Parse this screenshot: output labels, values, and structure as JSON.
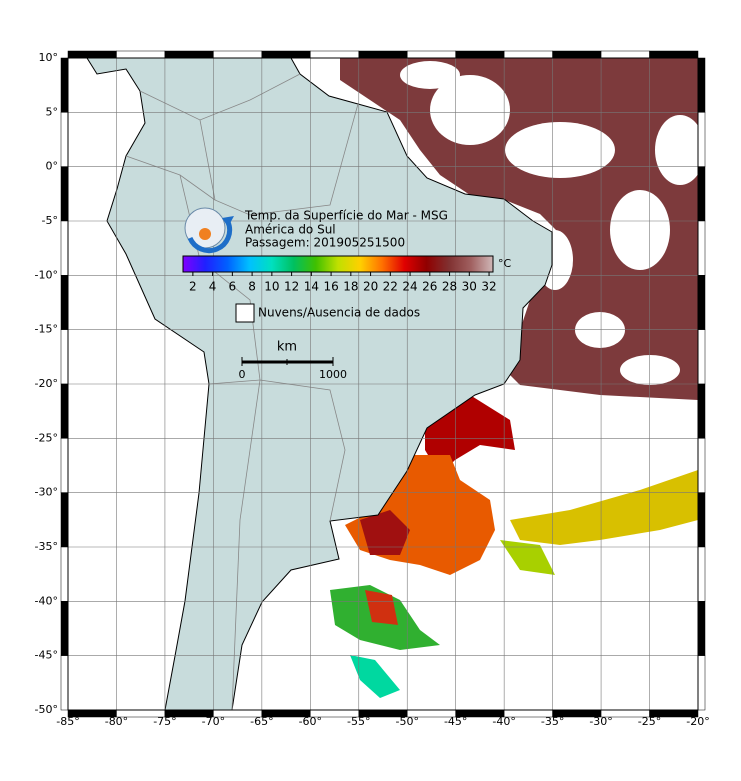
{
  "map": {
    "title": "Temp. da Superfície do Mar - MSG",
    "subtitle": "América do Sul",
    "pass": "Passagem: 201905251500",
    "xlim": [
      -85,
      -20
    ],
    "ylim": [
      -50,
      10
    ],
    "xticks": [
      {
        "value": -85,
        "label": "-85°"
      },
      {
        "value": -80,
        "label": "-80°"
      },
      {
        "value": -75,
        "label": "-75°"
      },
      {
        "value": -70,
        "label": "-70°"
      },
      {
        "value": -65,
        "label": "-65°"
      },
      {
        "value": -60,
        "label": "-60°"
      },
      {
        "value": -55,
        "label": "-55°"
      },
      {
        "value": -50,
        "label": "-50°"
      },
      {
        "value": -45,
        "label": "-45°"
      },
      {
        "value": -40,
        "label": "-40°"
      },
      {
        "value": -35,
        "label": "-35°"
      },
      {
        "value": -30,
        "label": "-30°"
      },
      {
        "value": -25,
        "label": "-25°"
      },
      {
        "value": -20,
        "label": "-20°"
      }
    ],
    "yticks": [
      {
        "value": 10,
        "label": "10°"
      },
      {
        "value": 5,
        "label": "5°"
      },
      {
        "value": 0,
        "label": "0°"
      },
      {
        "value": -5,
        "label": "-5°"
      },
      {
        "value": -10,
        "label": "-10°"
      },
      {
        "value": -15,
        "label": "-15°"
      },
      {
        "value": -20,
        "label": "-20°"
      },
      {
        "value": -25,
        "label": "-25°"
      },
      {
        "value": -30,
        "label": "-30°"
      },
      {
        "value": -35,
        "label": "-35°"
      },
      {
        "value": -40,
        "label": "-40°"
      },
      {
        "value": -45,
        "label": "-45°"
      },
      {
        "value": -50,
        "label": "-50°"
      }
    ],
    "grid": true,
    "colorbar": {
      "unit": "°C",
      "clim": [
        1,
        32.4
      ],
      "ticks": [
        2,
        4,
        6,
        8,
        10,
        12,
        14,
        16,
        18,
        20,
        22,
        24,
        26,
        28,
        30,
        32
      ],
      "colors": [
        "#8000ff",
        "#2020ff",
        "#0060ff",
        "#00c0ff",
        "#00e0c0",
        "#00c060",
        "#40c000",
        "#c0e000",
        "#ffd000",
        "#ff7000",
        "#e00000",
        "#900000",
        "#803030",
        "#a06060",
        "#d0b8b8"
      ]
    },
    "legend": "Nuvens/Ausencia de dados",
    "scale": {
      "unit": "km",
      "labels": [
        "0",
        "1000"
      ]
    }
  }
}
